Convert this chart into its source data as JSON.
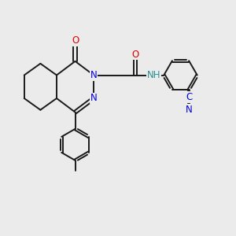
{
  "background_color": "#ebebeb",
  "bond_color": "#1a1a1a",
  "bond_width": 1.4,
  "atom_colors": {
    "N": "#0000e0",
    "O": "#e00000",
    "H": "#2a9090",
    "CN_C": "#0000e0",
    "default": "#1a1a1a"
  },
  "font_size_atom": 8.5,
  "fig_size": [
    3.0,
    3.0
  ],
  "dpi": 100
}
